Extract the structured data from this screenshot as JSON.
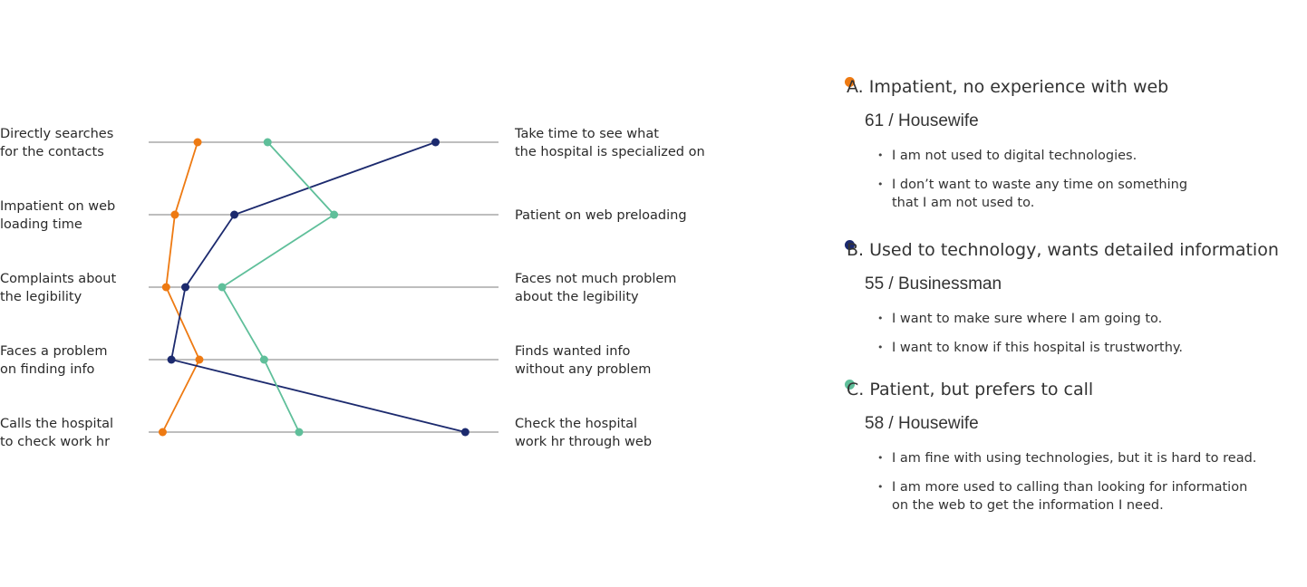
{
  "chart_data": {
    "type": "line",
    "scale_pairs": [
      {
        "left": [
          "Directly searches",
          "for the contacts"
        ],
        "right": [
          "Take time to see what",
          "the hospital is specialized on"
        ]
      },
      {
        "left": [
          "Impatient on web",
          "loading time"
        ],
        "right": [
          "Patient on web preloading"
        ]
      },
      {
        "left": [
          "Complaints about",
          "the legibility"
        ],
        "right": [
          "Faces not much problem",
          "about the legibility"
        ]
      },
      {
        "left": [
          "Faces a problem",
          "on finding info"
        ],
        "right": [
          "Finds wanted info",
          "without any problem"
        ]
      },
      {
        "left": [
          "Calls the hospital",
          "to check work hr"
        ],
        "right": [
          "Check the hospital",
          "work hr through web"
        ]
      }
    ],
    "xlim": [
      0,
      1
    ],
    "series": [
      {
        "key": "A",
        "color": "#ee7a12",
        "values": [
          0.14,
          0.075,
          0.05,
          0.145,
          0.04
        ]
      },
      {
        "key": "B",
        "color": "#1c2a6e",
        "values": [
          0.82,
          0.245,
          0.105,
          0.065,
          0.905
        ]
      },
      {
        "key": "C",
        "color": "#5fbf9a",
        "values": [
          0.34,
          0.53,
          0.21,
          0.33,
          0.43
        ]
      }
    ]
  },
  "personas": [
    {
      "title": "A. Impatient, no experience with web",
      "color": "#ee7a12",
      "meta": "61 / Housewife",
      "quotes": [
        [
          "I am not used to digital technologies."
        ],
        [
          "I don’t want to waste any time on something",
          "that I am not used to."
        ]
      ]
    },
    {
      "title": "B. Used to technology, wants detailed information",
      "color": "#1c2a6e",
      "meta": "55 / Businessman",
      "quotes": [
        [
          "I want to make sure where I am going to."
        ],
        [
          "I want to know if this hospital is trustworthy."
        ]
      ]
    },
    {
      "title": "C. Patient, but prefers to call",
      "color": "#5fbf9a",
      "meta": "58 / Housewife",
      "quotes": [
        [
          "I am fine with using technologies, but it is hard to read."
        ],
        [
          "I am more used to calling than looking for information",
          "on the web to get the information I need."
        ]
      ]
    }
  ]
}
